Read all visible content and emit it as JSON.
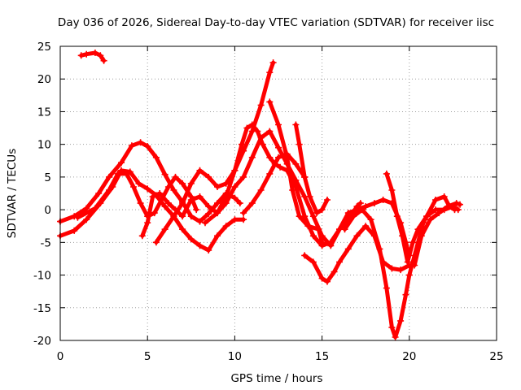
{
  "chart_data": {
    "type": "line",
    "title": "Day 036 of 2026, Sidereal Day-to-day VTEC variation (SDTVAR) for receiver iisc",
    "xlabel": "GPS time / hours",
    "ylabel": "SDTVAR / TECUs",
    "xlim": [
      0,
      25
    ],
    "ylim": [
      -20,
      25
    ],
    "xticks": [
      0,
      5,
      10,
      15,
      20,
      25
    ],
    "yticks": [
      -20,
      -15,
      -10,
      -5,
      0,
      5,
      10,
      15,
      20,
      25
    ],
    "grid": true,
    "legend": "none",
    "marker": "plus",
    "color": "#ff0000",
    "series": [
      {
        "name": "trace-1",
        "points": [
          [
            1.2,
            23.6
          ],
          [
            1.5,
            23.8
          ],
          [
            2.0,
            24.0
          ],
          [
            2.3,
            23.6
          ],
          [
            2.5,
            22.8
          ]
        ]
      },
      {
        "name": "trace-2",
        "points": [
          [
            0.0,
            -1.8
          ],
          [
            0.8,
            -1.0
          ],
          [
            1.5,
            0.2
          ],
          [
            2.2,
            2.5
          ],
          [
            2.8,
            5.0
          ],
          [
            3.5,
            7.2
          ],
          [
            4.1,
            9.8
          ],
          [
            4.6,
            10.3
          ],
          [
            5.0,
            9.7
          ],
          [
            5.5,
            8.0
          ],
          [
            6.0,
            5.4
          ],
          [
            6.5,
            3.0
          ],
          [
            7.0,
            1.2
          ],
          [
            7.5,
            -1.0
          ],
          [
            8.0,
            -1.8
          ],
          [
            8.5,
            -0.6
          ],
          [
            9.0,
            1.0
          ],
          [
            9.5,
            2.5
          ],
          [
            10.0,
            1.8
          ],
          [
            10.3,
            1.0
          ]
        ]
      },
      {
        "name": "trace-3",
        "points": [
          [
            0.0,
            -4.0
          ],
          [
            0.8,
            -3.2
          ],
          [
            1.5,
            -1.5
          ],
          [
            2.3,
            1.0
          ],
          [
            3.0,
            3.5
          ],
          [
            3.5,
            6.0
          ],
          [
            4.0,
            5.8
          ],
          [
            4.5,
            4.0
          ],
          [
            5.0,
            3.2
          ],
          [
            5.5,
            2.2
          ],
          [
            6.0,
            0.5
          ],
          [
            6.5,
            -1.0
          ],
          [
            7.0,
            -3.0
          ],
          [
            7.5,
            -4.5
          ],
          [
            8.0,
            -5.5
          ],
          [
            8.5,
            -6.2
          ],
          [
            9.0,
            -4.0
          ],
          [
            9.5,
            -2.5
          ],
          [
            10.0,
            -1.5
          ],
          [
            10.5,
            -1.5
          ]
        ]
      },
      {
        "name": "trace-4",
        "points": [
          [
            1.0,
            -1.2
          ],
          [
            2.0,
            0.2
          ],
          [
            2.8,
            3.0
          ],
          [
            3.3,
            5.5
          ],
          [
            3.8,
            5.5
          ],
          [
            4.2,
            3.5
          ],
          [
            4.6,
            1.0
          ],
          [
            5.0,
            -1.0
          ],
          [
            5.4,
            -0.5
          ],
          [
            5.8,
            1.5
          ],
          [
            6.2,
            3.5
          ],
          [
            6.6,
            5.0
          ],
          [
            7.0,
            4.0
          ],
          [
            7.5,
            2.0
          ],
          [
            7.8,
            0.0
          ]
        ]
      },
      {
        "name": "trace-5",
        "points": [
          [
            4.7,
            -4.0
          ],
          [
            5.0,
            -2.0
          ],
          [
            5.3,
            2.0
          ],
          [
            5.7,
            2.5
          ],
          [
            6.2,
            1.0
          ],
          [
            6.6,
            0.0
          ],
          [
            7.0,
            -1.0
          ],
          [
            7.5,
            1.5
          ],
          [
            8.0,
            2.0
          ],
          [
            8.5,
            0.5
          ],
          [
            9.0,
            -0.5
          ],
          [
            9.5,
            2.0
          ],
          [
            10.0,
            6.0
          ],
          [
            10.4,
            10.0
          ],
          [
            10.7,
            12.5
          ],
          [
            11.0,
            13.0
          ],
          [
            11.3,
            12.0
          ],
          [
            11.6,
            10.0
          ],
          [
            12.0,
            8.0
          ],
          [
            12.3,
            7.0
          ],
          [
            12.6,
            6.5
          ],
          [
            13.0,
            6.0
          ],
          [
            13.5,
            3.5
          ],
          [
            14.0,
            -1.0
          ],
          [
            14.5,
            -4.0
          ],
          [
            15.0,
            -5.5
          ],
          [
            15.5,
            -5.0
          ],
          [
            16.0,
            -3.0
          ],
          [
            16.5,
            -1.5
          ],
          [
            17.0,
            0.5
          ],
          [
            17.2,
            1.0
          ]
        ]
      },
      {
        "name": "trace-6",
        "points": [
          [
            5.5,
            -5.0
          ],
          [
            6.0,
            -3.0
          ],
          [
            6.5,
            -1.0
          ],
          [
            7.0,
            1.0
          ],
          [
            7.5,
            4.0
          ],
          [
            8.0,
            6.0
          ],
          [
            8.5,
            5.0
          ],
          [
            9.0,
            3.5
          ],
          [
            9.5,
            4.0
          ],
          [
            10.0,
            6.0
          ],
          [
            10.5,
            9.0
          ],
          [
            11.0,
            12.0
          ],
          [
            11.5,
            16.0
          ],
          [
            12.0,
            21.0
          ],
          [
            12.2,
            22.5
          ]
        ]
      },
      {
        "name": "trace-7",
        "points": [
          [
            8.3,
            -2.0
          ],
          [
            9.0,
            -0.5
          ],
          [
            9.5,
            1.0
          ],
          [
            10.0,
            3.5
          ],
          [
            10.5,
            5.0
          ],
          [
            11.0,
            8.0
          ],
          [
            11.5,
            11.0
          ],
          [
            12.0,
            12.0
          ],
          [
            12.5,
            9.5
          ],
          [
            13.0,
            7.0
          ],
          [
            13.5,
            4.5
          ],
          [
            14.0,
            2.0
          ],
          [
            14.5,
            -1.0
          ],
          [
            15.0,
            -4.0
          ],
          [
            15.5,
            -5.5
          ],
          [
            16.0,
            -3.0
          ],
          [
            16.5,
            -0.5
          ],
          [
            17.0,
            0.0
          ],
          [
            17.5,
            0.5
          ],
          [
            18.0,
            1.0
          ],
          [
            18.5,
            1.5
          ],
          [
            19.0,
            1.0
          ],
          [
            19.5,
            -2.0
          ],
          [
            19.8,
            -5.0
          ],
          [
            20.0,
            -7.0
          ]
        ]
      },
      {
        "name": "trace-8",
        "points": [
          [
            10.5,
            -0.5
          ],
          [
            11.0,
            1.0
          ],
          [
            11.5,
            3.0
          ],
          [
            12.0,
            5.5
          ],
          [
            12.5,
            8.0
          ],
          [
            13.0,
            8.5
          ],
          [
            13.5,
            7.0
          ],
          [
            14.0,
            5.0
          ]
        ]
      },
      {
        "name": "trace-9",
        "points": [
          [
            12.0,
            16.5
          ],
          [
            12.5,
            13.0
          ],
          [
            13.0,
            8.0
          ],
          [
            13.3,
            3.0
          ],
          [
            13.7,
            -1.0
          ],
          [
            14.2,
            -2.5
          ],
          [
            14.8,
            -3.0
          ],
          [
            15.0,
            -5.0
          ]
        ]
      },
      {
        "name": "trace-10",
        "points": [
          [
            13.5,
            13.0
          ],
          [
            13.7,
            10.0
          ],
          [
            14.0,
            5.0
          ],
          [
            14.3,
            2.0
          ],
          [
            14.7,
            -0.5
          ],
          [
            15.0,
            0.0
          ],
          [
            15.3,
            1.5
          ]
        ]
      },
      {
        "name": "trace-11",
        "points": [
          [
            14.0,
            -7.0
          ],
          [
            14.5,
            -8.0
          ],
          [
            15.0,
            -10.5
          ],
          [
            15.3,
            -11.0
          ],
          [
            15.7,
            -9.5
          ],
          [
            16.0,
            -8.0
          ],
          [
            16.5,
            -6.0
          ],
          [
            17.0,
            -4.0
          ],
          [
            17.5,
            -2.5
          ],
          [
            18.0,
            -4.0
          ],
          [
            18.5,
            -8.0
          ],
          [
            19.0,
            -9.0
          ],
          [
            19.5,
            -9.2
          ],
          [
            20.0,
            -8.5
          ]
        ]
      },
      {
        "name": "trace-12",
        "points": [
          [
            16.3,
            -3.0
          ],
          [
            16.8,
            -1.0
          ],
          [
            17.3,
            0.0
          ],
          [
            17.8,
            -1.5
          ],
          [
            18.3,
            -6.0
          ],
          [
            18.7,
            -12.0
          ],
          [
            19.0,
            -18.0
          ],
          [
            19.2,
            -19.5
          ],
          [
            19.5,
            -17.0
          ],
          [
            19.8,
            -13.0
          ],
          [
            20.0,
            -10.0
          ],
          [
            20.2,
            -8.0
          ],
          [
            20.5,
            -5.0
          ],
          [
            20.8,
            -2.0
          ],
          [
            21.0,
            -1.0
          ],
          [
            21.5,
            1.5
          ],
          [
            22.0,
            2.0
          ],
          [
            22.3,
            0.5
          ],
          [
            22.6,
            0.0
          ]
        ]
      },
      {
        "name": "trace-13",
        "points": [
          [
            18.7,
            5.5
          ],
          [
            19.0,
            3.0
          ],
          [
            19.3,
            -1.0
          ],
          [
            19.6,
            -4.0
          ],
          [
            19.9,
            -8.0
          ],
          [
            20.2,
            -5.0
          ],
          [
            20.5,
            -3.0
          ],
          [
            21.0,
            -1.0
          ],
          [
            21.5,
            0.0
          ],
          [
            22.0,
            0.0
          ],
          [
            22.5,
            0.5
          ],
          [
            22.8,
            0.0
          ]
        ]
      },
      {
        "name": "trace-14",
        "points": [
          [
            20.3,
            -8.5
          ],
          [
            20.7,
            -4.0
          ],
          [
            21.2,
            -1.5
          ],
          [
            21.7,
            -0.5
          ],
          [
            22.2,
            0.5
          ],
          [
            22.7,
            1.0
          ],
          [
            22.9,
            0.8
          ]
        ]
      }
    ]
  }
}
